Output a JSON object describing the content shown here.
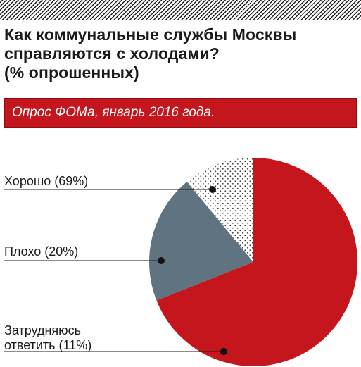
{
  "headline": {
    "line1": "Как коммунальные службы Москвы",
    "line2": "справляются с холодами?",
    "line3": "(% опрошенных)"
  },
  "source_note": "Опрос ФОМа, январь 2016 года.",
  "colors": {
    "accent_red": "#c4161c",
    "slate": "#5f7480",
    "dots": "#3a3a3a"
  },
  "labels": {
    "good": "Хорошо (69%)",
    "bad": "Плохо (20%)",
    "unsure_line1": "Затрудняюсь",
    "unsure_line2": "ответить (11%)"
  },
  "chart_data": {
    "type": "pie",
    "title": "Как коммунальные службы Москвы справляются с холодами? (% опрошенных)",
    "unit": "%",
    "slices": [
      {
        "label": "Хорошо",
        "value": 69,
        "color": "#c4161c",
        "fill": "solid"
      },
      {
        "label": "Плохо",
        "value": 20,
        "color": "#5f7480",
        "fill": "solid"
      },
      {
        "label": "Затрудняюсь ответить",
        "value": 11,
        "color": "#3a3a3a",
        "fill": "dotted"
      }
    ],
    "legend": "callout labels at left"
  }
}
